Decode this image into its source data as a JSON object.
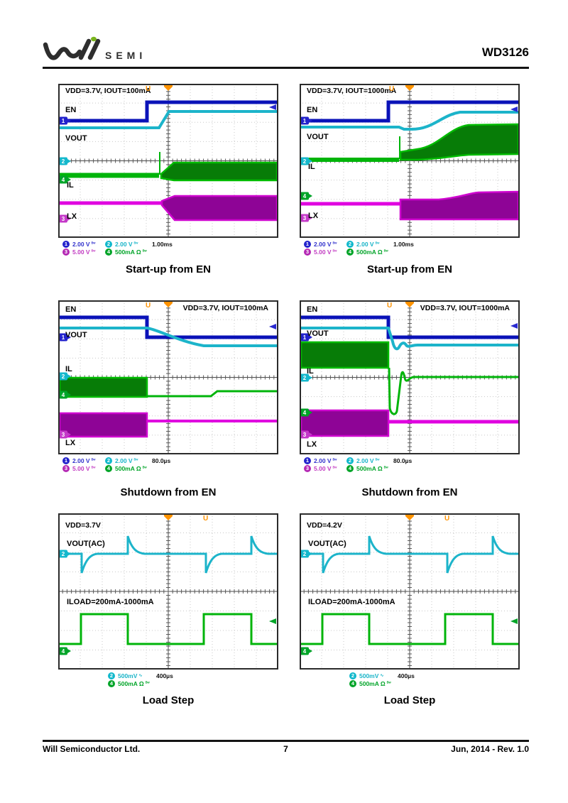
{
  "header": {
    "logo_text": "SEMI",
    "part_number": "WD3126"
  },
  "footer": {
    "company": "Will Semiconductor Ltd.",
    "page_number": "7",
    "revision": "Jun, 2014 - Rev. 1.0"
  },
  "symbols": {
    "bw": "ᴮʷ",
    "ac": "∿",
    "trigger": "U"
  },
  "badges": {
    "ch1": "1",
    "ch2": "2",
    "ch3": "3",
    "ch4": "4"
  },
  "scopes": [
    {
      "caption": "Start-up from EN",
      "title": "VDD=3.7V, IOUT=100mA",
      "labels": {
        "en": "EN",
        "vout": "VOUT",
        "il": "IL",
        "lx": "LX"
      },
      "readout": {
        "ch1": "2.00 V",
        "ch2": "2.00 V",
        "ch3": "5.00 V",
        "ch4": "500mA Ω",
        "timebase": "1.00ms"
      }
    },
    {
      "caption": "Start-up from EN",
      "title": "VDD=3.7V, IOUT=1000mA",
      "labels": {
        "en": "EN",
        "vout": "VOUT",
        "il": "IL",
        "lx": "LX"
      },
      "readout": {
        "ch1": "2.00 V",
        "ch2": "2.00 V",
        "ch3": "5.00 V",
        "ch4": "500mA Ω",
        "timebase": "1.00ms"
      }
    },
    {
      "caption": "Shutdown from EN",
      "title": "VDD=3.7V, IOUT=100mA",
      "labels": {
        "en": "EN",
        "vout": "VOUT",
        "il": "IL",
        "lx": "LX"
      },
      "readout": {
        "ch1": "2.00 V",
        "ch2": "2.00 V",
        "ch3": "5.00 V",
        "ch4": "500mA Ω",
        "timebase": "80.0µs"
      }
    },
    {
      "caption": "Shutdown from EN",
      "title": "VDD=3.7V, IOUT=1000mA",
      "labels": {
        "en": "EN",
        "vout": "VOUT",
        "il": "IL",
        "lx": "LX"
      },
      "readout": {
        "ch1": "2.00 V",
        "ch2": "2.00 V",
        "ch3": "5.00 V",
        "ch4": "500mA Ω",
        "timebase": "80.0µs"
      }
    },
    {
      "caption": "Load Step",
      "labels": {
        "vdd": "VDD=3.7V",
        "vout_ac": "VOUT(AC)",
        "iload": "ILOAD=200mA-1000mA"
      },
      "readout": {
        "ch2": "500mV",
        "ch4": "500mA Ω",
        "timebase": "400µs"
      }
    },
    {
      "caption": "Load Step",
      "labels": {
        "vdd": "VDD=4.2V",
        "vout_ac": "VOUT(AC)",
        "iload": "ILOAD=200mA-1000mA"
      },
      "readout": {
        "ch2": "500mV",
        "ch4": "500mA Ω",
        "timebase": "400µs"
      }
    }
  ]
}
